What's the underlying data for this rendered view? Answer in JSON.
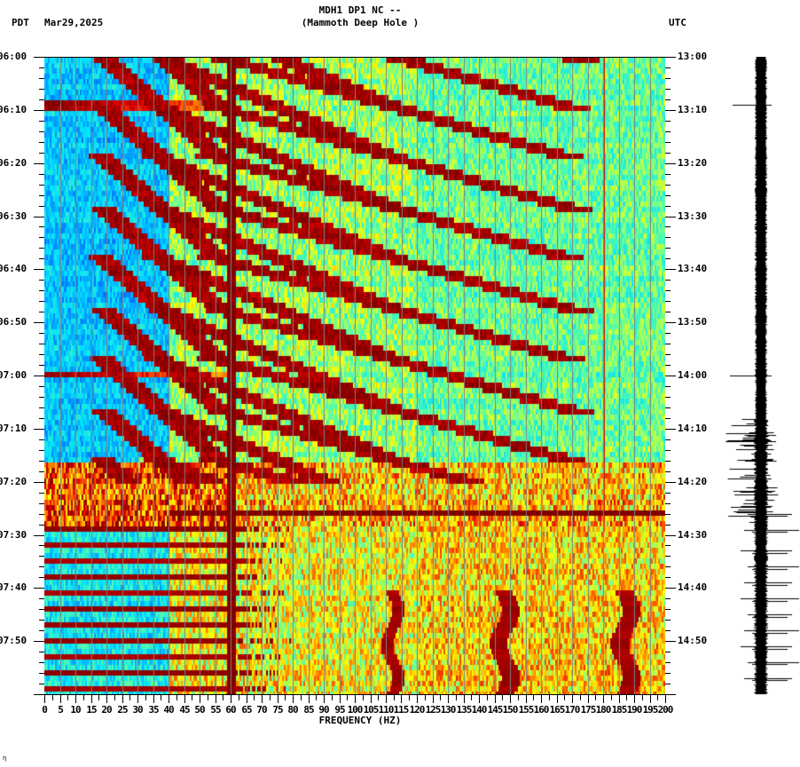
{
  "header": {
    "station": "MDH1 DP1 NC --",
    "site": "(Mammoth Deep Hole )",
    "left_timezone": "PDT",
    "date": "Mar29,2025",
    "right_timezone": "UTC"
  },
  "footer": {
    "mark": "η"
  },
  "colors": {
    "colormap": [
      "#0000a0",
      "#0060ff",
      "#00e0ff",
      "#60ffa0",
      "#ffff00",
      "#ff8000",
      "#e00000",
      "#800000"
    ],
    "gridline": "#808080",
    "axis": "#000000",
    "seismogram": "#000000"
  },
  "chart_data": {
    "type": "heatmap",
    "title": "MDH1 DP1 NC -- (Mammoth Deep Hole )",
    "subtitle": "Mar29,2025",
    "xlabel": "FREQUENCY (HZ)",
    "ylabel_left": "PDT",
    "ylabel_right": "UTC",
    "xlim": [
      0,
      200
    ],
    "x_ticks": [
      0,
      5,
      10,
      15,
      20,
      25,
      30,
      35,
      40,
      45,
      50,
      55,
      60,
      65,
      70,
      75,
      80,
      85,
      90,
      95,
      100,
      105,
      110,
      115,
      120,
      125,
      130,
      135,
      140,
      145,
      150,
      155,
      160,
      165,
      170,
      175,
      180,
      185,
      190,
      195,
      200
    ],
    "y_ticks_left": [
      "06:00",
      "06:10",
      "06:20",
      "06:30",
      "06:40",
      "06:50",
      "07:00",
      "07:10",
      "07:20",
      "07:30",
      "07:40",
      "07:50"
    ],
    "y_ticks_right": [
      "13:00",
      "13:10",
      "13:20",
      "13:30",
      "13:40",
      "13:50",
      "14:00",
      "14:10",
      "14:20",
      "14:30",
      "14:40",
      "14:50"
    ],
    "time_range_local": [
      "06:00",
      "08:00"
    ],
    "minor_tick_minutes": 2,
    "grid": true,
    "features": [
      {
        "label": "60 Hz line",
        "freq_hz": 60,
        "time": "06:00-08:00",
        "type": "constant-narrowband"
      },
      {
        "label": "180 Hz line",
        "freq_hz": 180,
        "time": "06:00-07:25",
        "type": "constant-narrowband-weak"
      },
      {
        "label": "rising harmonic arcs",
        "time": "06:00-07:20",
        "freq_range_hz": [
          20,
          130
        ],
        "type": "gliding-tones"
      },
      {
        "label": "broadband burst",
        "time": "07:17-07:25",
        "freq_range_hz": [
          0,
          60
        ],
        "type": "broadband"
      },
      {
        "label": "long horizontal line",
        "time": "07:26",
        "freq_range_hz": [
          40,
          200
        ],
        "type": "broadband-pulse"
      },
      {
        "label": "periodic broadband pulses",
        "time": "07:28-08:00",
        "freq_range_hz": [
          0,
          60
        ],
        "interval_min": 3,
        "type": "impulses"
      },
      {
        "label": "wandering tone ~112 Hz",
        "time": "07:40-08:00",
        "freq_hz": 112
      },
      {
        "label": "wandering tone ~148 Hz",
        "time": "07:41-08:00",
        "freq_hz": 148
      },
      {
        "label": "wandering tone ~187 Hz",
        "time": "07:41-08:00",
        "freq_hz": 187
      },
      {
        "label": "low-frequency glides",
        "time": "07:30-08:00",
        "freq_hz": [
          37,
          75
        ]
      }
    ],
    "seismogram": {
      "position": "right",
      "large_spikes_utc": [
        "13:09",
        "14:00"
      ],
      "activity_increase_utc": "14:08",
      "periodic_spikes_utc": [
        "14:26",
        "14:29",
        "14:33",
        "14:36",
        "14:39",
        "14:42",
        "14:45",
        "14:48",
        "14:51",
        "14:54",
        "14:57"
      ]
    }
  }
}
